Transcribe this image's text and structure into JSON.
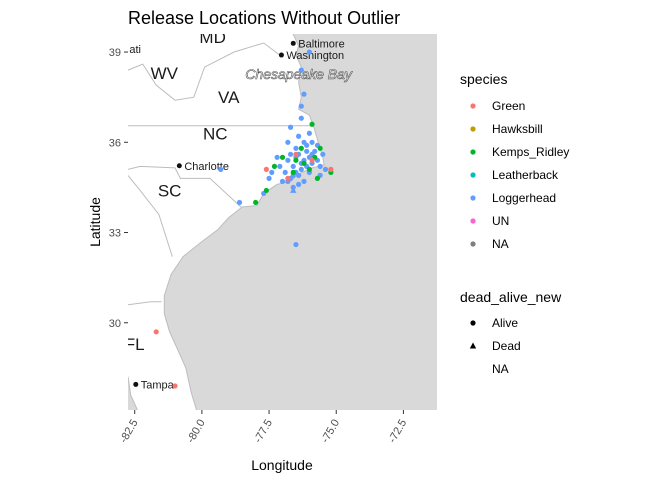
{
  "chart_data": {
    "type": "scatter",
    "title": "Release Locations Without Outlier",
    "xlabel": "Longitude",
    "ylabel": "Latitude",
    "xlim": [
      -82.75,
      -71.25
    ],
    "ylim": [
      27.1,
      39.6
    ],
    "x_ticks": [
      -82.5,
      -80.0,
      -77.5,
      -75.0,
      -72.5
    ],
    "x_tick_labels": [
      "-82.5",
      "-80.0",
      "-77.5",
      "-75.0",
      "-72.5"
    ],
    "y_ticks": [
      30,
      33,
      36,
      39
    ],
    "y_tick_labels": [
      "30",
      "33",
      "36",
      "39"
    ],
    "map_labels": {
      "states": [
        {
          "text": "MD",
          "lon": -79.6,
          "lat": 39.3
        },
        {
          "text": "WV",
          "lon": -81.4,
          "lat": 38.1
        },
        {
          "text": "VA",
          "lon": -79.0,
          "lat": 37.3
        },
        {
          "text": "NC",
          "lon": -79.5,
          "lat": 36.1
        },
        {
          "text": "SC",
          "lon": -81.2,
          "lat": 34.2
        },
        {
          "text": "FL",
          "lon": -82.5,
          "lat": 29.1
        }
      ],
      "cities": [
        {
          "text": "Baltimore",
          "lon": -76.6,
          "lat": 39.29
        },
        {
          "text": "Washington",
          "lon": -77.04,
          "lat": 38.9
        },
        {
          "text": "Charlotte",
          "lon": -80.84,
          "lat": 35.22
        },
        {
          "text": "Tampa",
          "lon": -82.46,
          "lat": 27.95
        },
        {
          "text": "ati",
          "lon": -82.7,
          "lat": 39.1
        }
      ],
      "water": [
        {
          "text": "Chesapeake Bay",
          "lon": -76.4,
          "lat": 38.1
        }
      ]
    },
    "colors": {
      "Green": "#f8766d",
      "Hawksbill": "#c49a00",
      "Kemps_Ridley": "#00b52a",
      "Leatherback": "#00c0b8",
      "Loggerhead": "#619cff",
      "UN": "#ff61cc",
      "NA": "#7f7f7f",
      "land": "#ffffff",
      "ocean": "#d9d9d9",
      "border": "#bdbdbd"
    },
    "legend": {
      "position": "right",
      "species_title": "species",
      "species": [
        "Green",
        "Hawksbill",
        "Kemps_Ridley",
        "Leatherback",
        "Loggerhead",
        "UN",
        "NA"
      ],
      "status_title": "dead_alive_new",
      "status": [
        "Alive",
        "Dead",
        "NA"
      ]
    },
    "series": [
      {
        "species": "Loggerhead",
        "status": "Alive",
        "points": [
          [
            -76.2,
            35.4
          ],
          [
            -76.0,
            35.5
          ],
          [
            -75.9,
            35.6
          ],
          [
            -75.8,
            35.7
          ],
          [
            -76.1,
            35.2
          ],
          [
            -76.3,
            35.1
          ],
          [
            -76.5,
            35.0
          ],
          [
            -76.6,
            34.9
          ],
          [
            -76.7,
            34.8
          ],
          [
            -76.8,
            34.7
          ],
          [
            -77.0,
            34.7
          ],
          [
            -76.4,
            34.9
          ],
          [
            -76.3,
            35.3
          ],
          [
            -76.5,
            35.5
          ],
          [
            -76.6,
            35.2
          ],
          [
            -75.7,
            35.4
          ],
          [
            -75.6,
            35.2
          ],
          [
            -75.5,
            35.6
          ],
          [
            -76.8,
            35.4
          ],
          [
            -76.9,
            35.0
          ],
          [
            -77.1,
            35.2
          ],
          [
            -76.2,
            34.7
          ],
          [
            -76.0,
            35.0
          ],
          [
            -75.9,
            35.3
          ],
          [
            -76.7,
            36.5
          ],
          [
            -76.4,
            36.2
          ],
          [
            -76.2,
            36.0
          ],
          [
            -75.9,
            36.0
          ],
          [
            -76.0,
            36.3
          ],
          [
            -76.5,
            35.8
          ],
          [
            -76.8,
            36.0
          ],
          [
            -76.3,
            36.8
          ],
          [
            -76.2,
            37.6
          ],
          [
            -76.3,
            37.2
          ],
          [
            -76.0,
            39.0
          ],
          [
            -76.3,
            38.4
          ],
          [
            -75.7,
            35.9
          ],
          [
            -76.1,
            35.7
          ],
          [
            -76.7,
            35.6
          ],
          [
            -77.2,
            35.5
          ],
          [
            -77.4,
            35.0
          ],
          [
            -77.5,
            34.8
          ],
          [
            -77.7,
            34.3
          ],
          [
            -76.4,
            34.6
          ],
          [
            -76.6,
            34.5
          ],
          [
            -79.3,
            35.1
          ],
          [
            -78.6,
            34.0
          ],
          [
            -76.5,
            32.6
          ],
          [
            -75.4,
            35.1
          ],
          [
            -75.6,
            34.9
          ],
          [
            -76.1,
            35.9
          ],
          [
            -76.4,
            35.6
          ]
        ]
      },
      {
        "species": "Kemps_Ridley",
        "status": "Alive",
        "points": [
          [
            -75.9,
            36.6
          ],
          [
            -75.6,
            35.8
          ],
          [
            -76.3,
            35.8
          ],
          [
            -77.0,
            35.5
          ],
          [
            -76.6,
            35.0
          ],
          [
            -77.3,
            35.2
          ],
          [
            -77.6,
            34.4
          ],
          [
            -78.0,
            34.0
          ],
          [
            -75.7,
            34.8
          ],
          [
            -76.0,
            35.1
          ],
          [
            -76.2,
            35.3
          ],
          [
            -75.8,
            35.5
          ],
          [
            -75.2,
            35.0
          ],
          [
            -76.5,
            35.4
          ]
        ]
      },
      {
        "species": "Green",
        "status": "Alive",
        "points": [
          [
            -76.5,
            35.6
          ],
          [
            -75.2,
            35.1
          ],
          [
            -77.6,
            35.1
          ],
          [
            -76.8,
            34.8
          ],
          [
            -81.7,
            29.7
          ],
          [
            -81.0,
            27.9
          ],
          [
            -75.9,
            35.4
          ]
        ]
      },
      {
        "species": "Loggerhead",
        "status": "Dead",
        "points": [
          [
            -76.6,
            34.4
          ]
        ]
      }
    ]
  }
}
